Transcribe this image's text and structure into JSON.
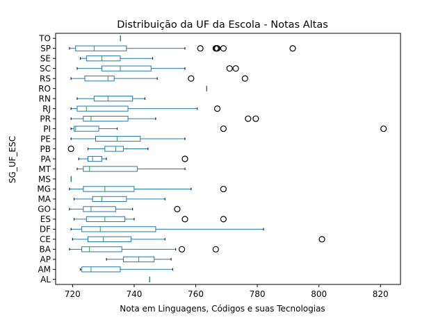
{
  "chart_data": {
    "type": "boxplot",
    "orientation": "horizontal",
    "title": "Distribuição da UF da Escola - Notas Altas",
    "xlabel": "Nota em Linguagens, Códigos e suas Tecnologias",
    "ylabel": "SG_UF_ESC",
    "xlim": [
      714.5,
      826.5
    ],
    "xticks": [
      720,
      740,
      760,
      780,
      800,
      820
    ],
    "grid": false,
    "colors": {
      "box": "#1f77b4",
      "median": "#2ca02c",
      "flier": "#000000"
    },
    "categories": [
      "AL",
      "AM",
      "AP",
      "BA",
      "CE",
      "DF",
      "ES",
      "GO",
      "MA",
      "MG",
      "MS",
      "MT",
      "PA",
      "PB",
      "PE",
      "PI",
      "PR",
      "RJ",
      "RN",
      "RO",
      "RS",
      "SC",
      "SE",
      "SP",
      "TO"
    ],
    "boxes": [
      {
        "label": "AL",
        "whislo": 745.0,
        "q1": 745.0,
        "med": 745.0,
        "q3": 745.0,
        "whishi": 745.0,
        "fliers": []
      },
      {
        "label": "AM",
        "whislo": 722.5,
        "q1": 723.0,
        "med": 726.0,
        "q3": 735.5,
        "whishi": 752.5,
        "fliers": []
      },
      {
        "label": "AP",
        "whislo": 731.0,
        "q1": 736.5,
        "med": 741.5,
        "q3": 746.5,
        "whishi": 752.0,
        "fliers": []
      },
      {
        "label": "BA",
        "whislo": 719.0,
        "q1": 723.0,
        "med": 725.5,
        "q3": 736.0,
        "whishi": 753.5,
        "fliers": [
          755.5,
          766.5
        ]
      },
      {
        "label": "CE",
        "whislo": 720.0,
        "q1": 725.0,
        "med": 730.0,
        "q3": 739.0,
        "whishi": 750.0,
        "fliers": [
          801.0
        ]
      },
      {
        "label": "DF",
        "whislo": 719.5,
        "q1": 723.0,
        "med": 729.0,
        "q3": 747.0,
        "whishi": 782.0,
        "fliers": []
      },
      {
        "label": "ES",
        "whislo": 720.5,
        "q1": 724.5,
        "med": 730.5,
        "q3": 737.0,
        "whishi": 740.0,
        "fliers": [
          756.5,
          769.0
        ]
      },
      {
        "label": "GO",
        "whislo": 719.0,
        "q1": 723.5,
        "med": 726.0,
        "q3": 734.0,
        "whishi": 739.5,
        "fliers": [
          754.0
        ]
      },
      {
        "label": "MA",
        "whislo": 720.5,
        "q1": 726.5,
        "med": 729.5,
        "q3": 737.5,
        "whishi": 750.0,
        "fliers": []
      },
      {
        "label": "MG",
        "whislo": 719.0,
        "q1": 723.5,
        "med": 730.5,
        "q3": 740.0,
        "whishi": 758.5,
        "fliers": [
          769.0
        ]
      },
      {
        "label": "MS",
        "whislo": 719.5,
        "q1": 719.5,
        "med": 719.5,
        "q3": 719.5,
        "whishi": 719.5,
        "fliers": []
      },
      {
        "label": "MT",
        "whislo": 721.5,
        "q1": 723.5,
        "med": 725.5,
        "q3": 741.0,
        "whishi": 756.5,
        "fliers": []
      },
      {
        "label": "PA",
        "whislo": 722.0,
        "q1": 725.0,
        "med": 726.5,
        "q3": 729.5,
        "whishi": 731.0,
        "fliers": [
          756.5
        ]
      },
      {
        "label": "PB",
        "whislo": 725.0,
        "q1": 730.5,
        "med": 734.0,
        "q3": 736.5,
        "whishi": 744.5,
        "fliers": [
          719.5
        ]
      },
      {
        "label": "PE",
        "whislo": 719.5,
        "q1": 727.5,
        "med": 734.5,
        "q3": 742.0,
        "whishi": 756.5,
        "fliers": []
      },
      {
        "label": "PI",
        "whislo": 719.5,
        "q1": 720.5,
        "med": 721.0,
        "q3": 728.5,
        "whishi": 734.5,
        "fliers": [
          769.0,
          821.0
        ]
      },
      {
        "label": "PR",
        "whislo": 719.5,
        "q1": 723.5,
        "med": 726.0,
        "q3": 738.0,
        "whishi": 747.0,
        "fliers": [
          777.0,
          779.5
        ]
      },
      {
        "label": "RJ",
        "whislo": 719.5,
        "q1": 721.5,
        "med": 724.5,
        "q3": 738.0,
        "whishi": 760.5,
        "fliers": [
          767.0
        ]
      },
      {
        "label": "RN",
        "whislo": 721.5,
        "q1": 727.0,
        "med": 731.5,
        "q3": 739.5,
        "whishi": 743.5,
        "fliers": []
      },
      {
        "label": "RO",
        "whislo": 763.5,
        "q1": 763.5,
        "med": 763.5,
        "q3": 763.5,
        "whishi": 763.5,
        "fliers": []
      },
      {
        "label": "RS",
        "whislo": 719.5,
        "q1": 724.0,
        "med": 731.5,
        "q3": 733.5,
        "whishi": 747.5,
        "fliers": [
          758.5,
          776.0
        ]
      },
      {
        "label": "SC",
        "whislo": 721.5,
        "q1": 729.5,
        "med": 735.5,
        "q3": 745.5,
        "whishi": 756.5,
        "fliers": [
          771.0,
          773.0
        ]
      },
      {
        "label": "SE",
        "whislo": 722.5,
        "q1": 724.5,
        "med": 729.5,
        "q3": 735.5,
        "whishi": 746.0,
        "fliers": []
      },
      {
        "label": "SP",
        "whislo": 719.0,
        "q1": 721.0,
        "med": 727.0,
        "q3": 737.5,
        "whishi": 756.5,
        "fliers": [
          761.5,
          766.5,
          766.8,
          767.0,
          769.0,
          791.5
        ]
      },
      {
        "label": "TO",
        "whislo": 735.5,
        "q1": 735.5,
        "med": 735.5,
        "q3": 735.5,
        "whishi": 735.5,
        "fliers": []
      }
    ]
  }
}
